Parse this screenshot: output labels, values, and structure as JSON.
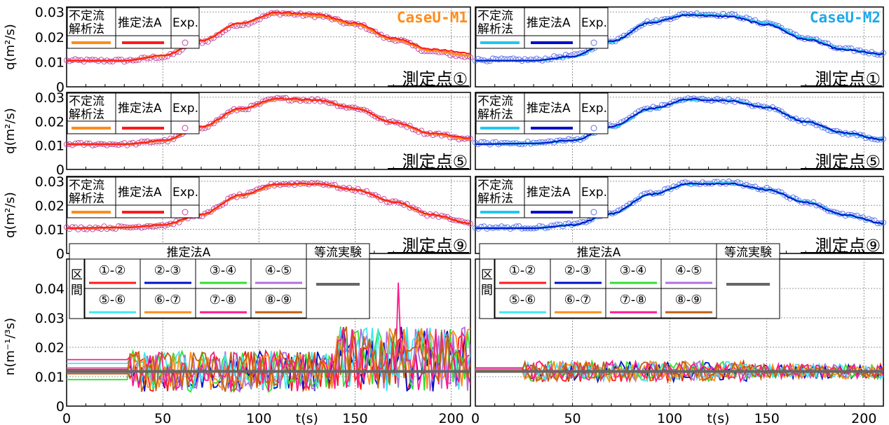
{
  "colors": {
    "unsteady_M1": "#ff8c1a",
    "methodA_M1": "#ff1a1a",
    "exp_M1": "#c040a0",
    "unsteady_M2": "#20c8f0",
    "methodA_M2": "#0010c8",
    "exp_M2": "#5a70e8",
    "uniform_flow": "#666666",
    "case_M1_label": "#ff8c1a",
    "case_M2_label": "#20a8e8"
  },
  "legend_q": {
    "col1_line1": "不定流",
    "col1_line2": "解析法",
    "col2": "推定法A",
    "col3": "Exp."
  },
  "legend_n": {
    "title_methodA": "推定法A",
    "title_uniform": "等流実験",
    "section_label_1": "区",
    "section_label_2": "間",
    "segments": [
      "①-②",
      "②-③",
      "③-④",
      "④-⑤",
      "⑤-⑥",
      "⑥-⑦",
      "⑦-⑧",
      "⑧-⑨"
    ],
    "segment_colors": [
      "#ff1a1a",
      "#0010c8",
      "#30e030",
      "#b070e0",
      "#40e8f0",
      "#ff8c1a",
      "#ff1a8c",
      "#c06010"
    ]
  },
  "axes": {
    "q_ylabel": "q(m²/s)",
    "n_ylabel": "n(m⁻¹/³s)",
    "xlabel": "t(s)",
    "x_ticks": [
      "0",
      "50",
      "100",
      "150",
      "200"
    ],
    "q_ticks": [
      "0",
      "0.01",
      "0.02",
      "0.03"
    ],
    "n_ticks": [
      "0",
      "0.01",
      "0.02",
      "0.03",
      "0.04"
    ]
  },
  "chart_data": [
    {
      "type": "line",
      "panel": "q-M1-point1",
      "title": "CaseU-M1",
      "annotation": "測定点①",
      "xlabel": "",
      "ylabel": "q(m²/s)",
      "xlim": [
        0,
        210
      ],
      "ylim": [
        0,
        0.032
      ],
      "x": [
        0,
        30,
        50,
        70,
        90,
        110,
        130,
        150,
        170,
        190,
        210
      ],
      "series": [
        {
          "name": "不定流解析法",
          "values": [
            0.0105,
            0.0105,
            0.0125,
            0.0185,
            0.0255,
            0.0295,
            0.0285,
            0.025,
            0.019,
            0.0145,
            0.0125
          ]
        },
        {
          "name": "推定法A",
          "values": [
            0.0105,
            0.0105,
            0.0125,
            0.0185,
            0.0255,
            0.0298,
            0.029,
            0.0255,
            0.0195,
            0.015,
            0.0135
          ]
        },
        {
          "name": "Exp.",
          "values": [
            0.0105,
            0.0105,
            0.012,
            0.018,
            0.025,
            0.0295,
            0.0285,
            0.025,
            0.019,
            0.014,
            0.012
          ]
        }
      ]
    },
    {
      "type": "line",
      "panel": "q-M2-point1",
      "title": "CaseU-M2",
      "annotation": "測定点①",
      "xlabel": "",
      "ylabel": "",
      "xlim": [
        0,
        210
      ],
      "ylim": [
        0,
        0.032
      ],
      "x": [
        0,
        30,
        50,
        70,
        90,
        110,
        130,
        150,
        170,
        190,
        210
      ],
      "series": [
        {
          "name": "不定流解析法",
          "values": [
            0.0105,
            0.0105,
            0.012,
            0.018,
            0.026,
            0.029,
            0.0285,
            0.0255,
            0.0195,
            0.015,
            0.013
          ]
        },
        {
          "name": "推定法A",
          "values": [
            0.0105,
            0.0105,
            0.0122,
            0.0182,
            0.0258,
            0.0288,
            0.0282,
            0.025,
            0.019,
            0.0148,
            0.013
          ]
        },
        {
          "name": "Exp.",
          "values": [
            0.0108,
            0.0108,
            0.0125,
            0.0185,
            0.026,
            0.0292,
            0.0288,
            0.0255,
            0.0195,
            0.015,
            0.0132
          ]
        }
      ]
    },
    {
      "type": "line",
      "panel": "q-M1-point5",
      "title": "",
      "annotation": "測定点⑤",
      "xlabel": "",
      "ylabel": "q(m²/s)",
      "xlim": [
        0,
        210
      ],
      "ylim": [
        0,
        0.032
      ],
      "x": [
        0,
        30,
        50,
        70,
        90,
        110,
        130,
        150,
        170,
        190,
        210
      ],
      "series": [
        {
          "name": "不定流解析法",
          "values": [
            0.0105,
            0.0105,
            0.0118,
            0.0175,
            0.025,
            0.0292,
            0.0288,
            0.0255,
            0.0195,
            0.0148,
            0.0125
          ]
        },
        {
          "name": "推定法A",
          "values": [
            0.0105,
            0.0105,
            0.012,
            0.0178,
            0.0252,
            0.0295,
            0.0288,
            0.0255,
            0.0195,
            0.015,
            0.013
          ]
        },
        {
          "name": "Exp.",
          "values": [
            0.0105,
            0.0105,
            0.0118,
            0.0175,
            0.025,
            0.0293,
            0.0288,
            0.0255,
            0.0195,
            0.0148,
            0.0125
          ]
        }
      ]
    },
    {
      "type": "line",
      "panel": "q-M2-point5",
      "title": "",
      "annotation": "測定点⑤",
      "xlabel": "",
      "ylabel": "",
      "xlim": [
        0,
        210
      ],
      "ylim": [
        0,
        0.032
      ],
      "x": [
        0,
        30,
        50,
        70,
        90,
        110,
        130,
        150,
        170,
        190,
        210
      ],
      "series": [
        {
          "name": "不定流解析法",
          "values": [
            0.0105,
            0.0108,
            0.012,
            0.0175,
            0.025,
            0.029,
            0.0288,
            0.0258,
            0.0198,
            0.015,
            0.0125
          ]
        },
        {
          "name": "推定法A",
          "values": [
            0.0105,
            0.0108,
            0.012,
            0.0178,
            0.0252,
            0.0292,
            0.0285,
            0.0258,
            0.0198,
            0.0152,
            0.0125
          ]
        },
        {
          "name": "Exp.",
          "values": [
            0.0108,
            0.011,
            0.0122,
            0.018,
            0.0255,
            0.0292,
            0.0288,
            0.0258,
            0.0198,
            0.015,
            0.0125
          ]
        }
      ]
    },
    {
      "type": "line",
      "panel": "q-M1-point9",
      "title": "",
      "annotation": "測定点⑨",
      "xlabel": "",
      "ylabel": "q(m²/s)",
      "xlim": [
        0,
        210
      ],
      "ylim": [
        0,
        0.032
      ],
      "x": [
        0,
        30,
        50,
        70,
        90,
        110,
        130,
        150,
        170,
        190,
        210
      ],
      "series": [
        {
          "name": "不定流解析法",
          "values": [
            0.0105,
            0.0108,
            0.0118,
            0.016,
            0.024,
            0.0285,
            0.029,
            0.0265,
            0.0215,
            0.016,
            0.0125
          ]
        },
        {
          "name": "推定法A",
          "values": [
            0.0105,
            0.0108,
            0.0118,
            0.0162,
            0.0242,
            0.0288,
            0.029,
            0.0265,
            0.0215,
            0.0162,
            0.0125
          ]
        },
        {
          "name": "Exp.",
          "values": [
            0.0105,
            0.0108,
            0.0118,
            0.016,
            0.024,
            0.0288,
            0.0292,
            0.0265,
            0.0215,
            0.016,
            0.0125
          ]
        }
      ]
    },
    {
      "type": "line",
      "panel": "q-M2-point9",
      "title": "",
      "annotation": "測定点⑨",
      "xlabel": "",
      "ylabel": "",
      "xlim": [
        0,
        210
      ],
      "ylim": [
        0,
        0.032
      ],
      "x": [
        0,
        30,
        50,
        70,
        90,
        110,
        130,
        150,
        170,
        190,
        210
      ],
      "series": [
        {
          "name": "不定流解析法",
          "values": [
            0.0105,
            0.0105,
            0.0118,
            0.0165,
            0.0245,
            0.0288,
            0.0292,
            0.0265,
            0.0215,
            0.016,
            0.0125
          ]
        },
        {
          "name": "推定法A",
          "values": [
            0.0105,
            0.0105,
            0.0118,
            0.0165,
            0.0245,
            0.029,
            0.029,
            0.0265,
            0.0212,
            0.016,
            0.0125
          ]
        },
        {
          "name": "Exp.",
          "values": [
            0.0108,
            0.0108,
            0.012,
            0.0168,
            0.0248,
            0.0292,
            0.0295,
            0.0268,
            0.0215,
            0.016,
            0.0128
          ]
        }
      ]
    },
    {
      "type": "line",
      "panel": "n-M1",
      "title": "",
      "xlabel": "t(s)",
      "ylabel": "n(m⁻¹/³s)",
      "xlim": [
        0,
        210
      ],
      "ylim": [
        0,
        0.05
      ],
      "initial_values": [
        0.0125,
        0.0115,
        0.009,
        0.013,
        0.0145,
        0.0115,
        0.0158,
        0.011
      ],
      "step_time": 33,
      "noise_amplitude_early": 0.007,
      "noise_amplitude_late": 0.011,
      "peak": {
        "t": 173,
        "value": 0.042
      },
      "uniform_flow_value": 0.0118
    },
    {
      "type": "line",
      "panel": "n-M2",
      "title": "",
      "xlabel": "t(s)",
      "ylabel": "",
      "xlim": [
        0,
        210
      ],
      "ylim": [
        0,
        0.05
      ],
      "initial_values": [
        0.013,
        0.012,
        0.0118,
        0.0125,
        0.012,
        0.0122,
        0.013,
        0.0118
      ],
      "step_time": 25,
      "noise_amplitude_early": 0.0035,
      "noise_amplitude_late": 0.0025,
      "uniform_flow_value": 0.0118
    }
  ]
}
